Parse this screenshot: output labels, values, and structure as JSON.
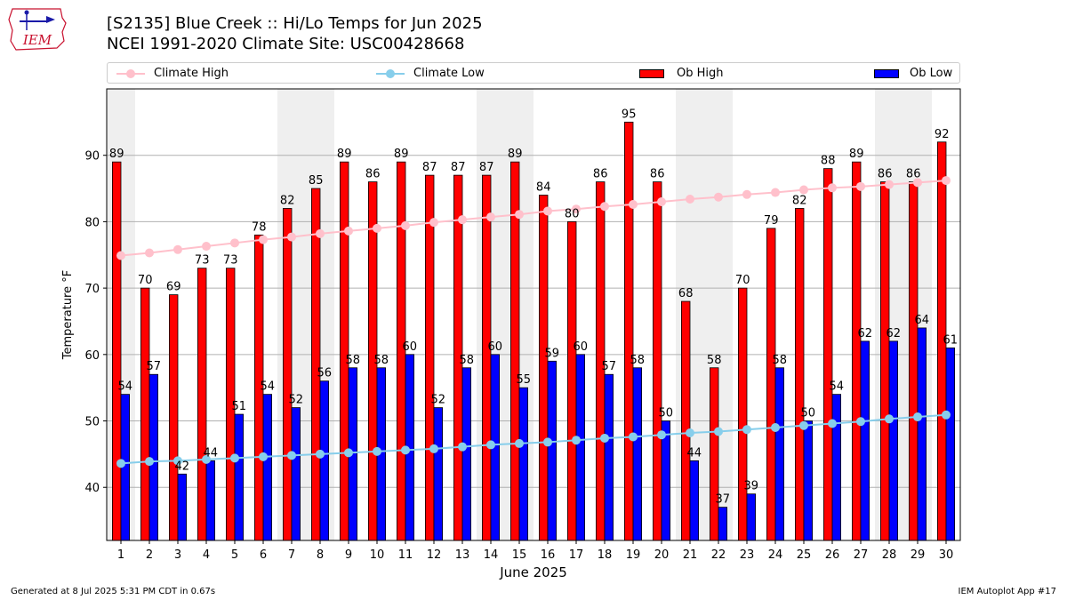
{
  "header": {
    "title_line1": "[S2135] Blue Creek :: Hi/Lo Temps for Jun 2025",
    "title_line2": "NCEI 1991-2020 Climate Site: USC00428668",
    "logo_text": "IEM"
  },
  "footer": {
    "left": "Generated at 8 Jul 2025 5:31 PM CDT in 0.67s",
    "right": "IEM Autoplot App #17"
  },
  "colors": {
    "ob_high": "#ff0000",
    "ob_low": "#0000ff",
    "climate_high": "#ffc0cb",
    "climate_low": "#87ceeb",
    "weekend_band": "#efefef",
    "grid": "#b0b0b0"
  },
  "chart_data": {
    "type": "bar",
    "xlabel": "June 2025",
    "ylabel": "Temperature °F",
    "ylim": [
      32,
      100
    ],
    "yticks": [
      40,
      50,
      60,
      70,
      80,
      90
    ],
    "grid": "horizontal",
    "legend_placement": "top",
    "categories": [
      "1",
      "2",
      "3",
      "4",
      "5",
      "6",
      "7",
      "8",
      "9",
      "10",
      "11",
      "12",
      "13",
      "14",
      "15",
      "16",
      "17",
      "18",
      "19",
      "20",
      "21",
      "22",
      "23",
      "24",
      "25",
      "26",
      "27",
      "28",
      "29",
      "30"
    ],
    "shaded_days": [
      [
        1,
        1
      ],
      [
        7,
        8
      ],
      [
        14,
        15
      ],
      [
        21,
        22
      ],
      [
        28,
        29
      ]
    ],
    "series": [
      {
        "name": "Climate High",
        "kind": "line",
        "values": [
          74.9,
          75.3,
          75.8,
          76.3,
          76.8,
          77.3,
          77.7,
          78.2,
          78.6,
          79.0,
          79.4,
          79.9,
          80.3,
          80.7,
          81.1,
          81.6,
          81.9,
          82.3,
          82.6,
          83.0,
          83.4,
          83.7,
          84.1,
          84.4,
          84.8,
          85.1,
          85.3,
          85.6,
          85.9,
          86.2
        ]
      },
      {
        "name": "Climate Low",
        "kind": "line",
        "values": [
          43.6,
          43.9,
          44.0,
          44.2,
          44.4,
          44.6,
          44.8,
          45.0,
          45.2,
          45.4,
          45.6,
          45.8,
          46.1,
          46.4,
          46.6,
          46.8,
          47.1,
          47.4,
          47.6,
          47.9,
          48.2,
          48.4,
          48.7,
          49.0,
          49.3,
          49.6,
          49.9,
          50.3,
          50.6,
          50.9
        ]
      },
      {
        "name": "Ob High",
        "kind": "bar",
        "values": [
          89,
          70,
          69,
          73,
          73,
          78,
          82,
          85,
          89,
          86,
          89,
          87,
          87,
          87,
          89,
          84,
          80,
          86,
          95,
          86,
          68,
          58,
          70,
          79,
          82,
          88,
          89,
          86,
          86,
          92
        ]
      },
      {
        "name": "Ob Low",
        "kind": "bar",
        "values": [
          54,
          57,
          42,
          44,
          51,
          54,
          52,
          56,
          58,
          58,
          60,
          52,
          58,
          60,
          55,
          59,
          60,
          57,
          58,
          50,
          44,
          37,
          39,
          58,
          50,
          54,
          62,
          62,
          64,
          61
        ]
      }
    ]
  }
}
